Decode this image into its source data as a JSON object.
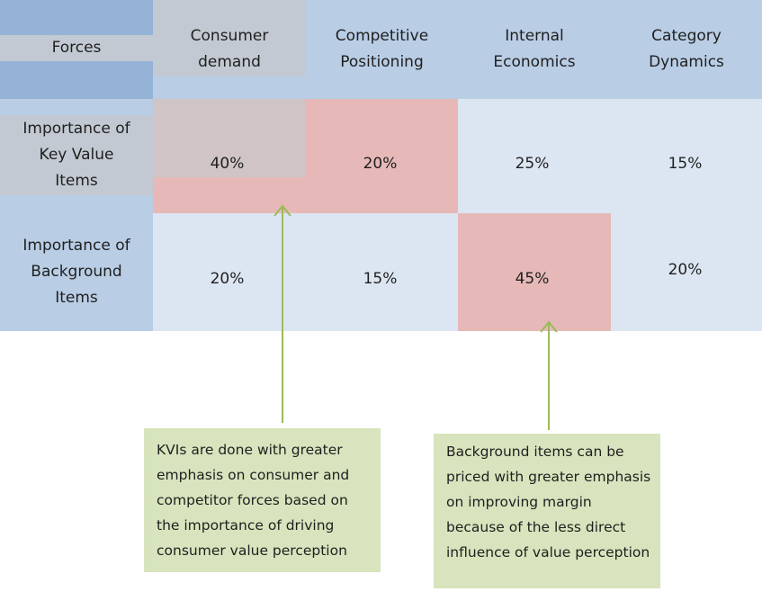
{
  "table": {
    "corner_label": "Forces",
    "headers": {
      "consumer_demand": [
        "Consumer",
        "demand"
      ],
      "competitive_positioning": [
        "Competitive",
        "Positioning"
      ],
      "internal_economics": [
        "Internal",
        "Economics"
      ],
      "category_dynamics": [
        "Category",
        "Dynamics"
      ]
    },
    "rows": {
      "key_value_items": {
        "label": [
          "Importance of",
          "Key Value",
          "Items"
        ],
        "values": [
          "40%",
          "20%",
          "25%",
          "15%"
        ]
      },
      "background_items": {
        "label": [
          "Importance of",
          "Background",
          "Items"
        ],
        "values": [
          "20%",
          "15%",
          "45%",
          "20%"
        ]
      }
    }
  },
  "notes": {
    "kvi": "KVIs are done with greater emphasis on consumer and competitor forces based on the importance of driving consumer value perception",
    "background": "Background items can be priced with greater emphasis on improving margin because of the less direct influence of value perception"
  },
  "colors": {
    "header_blue": "#b9cde5",
    "corner_blue": "#95b3d7",
    "light_blue": "#dce6f2",
    "grey": "#c3c9d2",
    "highlight_pink": "#e6b9b8",
    "grey_pink": "#d0c4c6",
    "note_green": "#d7e4bd",
    "arrow_green": "#9bbb59"
  }
}
